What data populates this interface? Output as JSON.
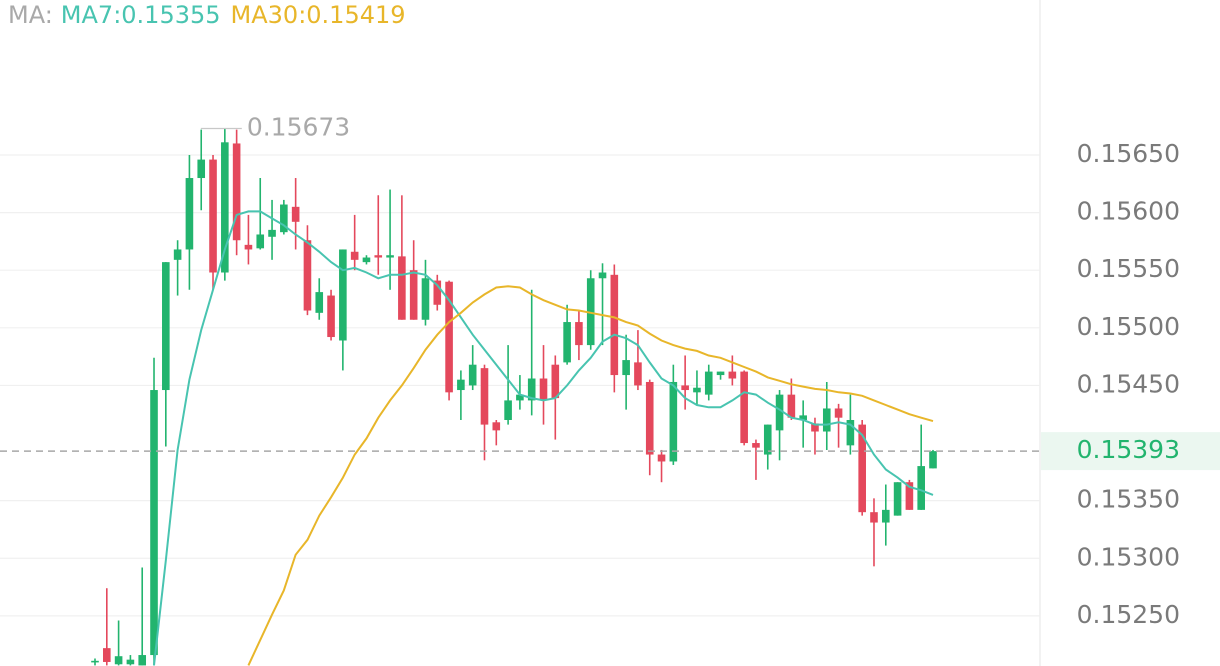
{
  "chart_data": {
    "type": "candlestick",
    "legend_prefix": "MA:",
    "open": [
      0.1521,
      0.15222,
      0.15208,
      0.15208,
      0.15207,
      0.15216,
      0.15446,
      0.15559,
      0.15568,
      0.1563,
      0.15646,
      0.15548,
      0.1566,
      0.15572,
      0.15569,
      0.15579,
      0.15583,
      0.15605,
      0.15576,
      0.15513,
      0.15528,
      0.15489,
      0.15566,
      0.15557,
      0.15563,
      0.15561,
      0.15562,
      0.1555,
      0.15507,
      0.15541,
      0.1554,
      0.15446,
      0.1545,
      0.15465,
      0.15418,
      0.1542,
      0.15437,
      0.15437,
      0.15456,
      0.15468,
      0.1547,
      0.15505,
      0.15485,
      0.15543,
      0.15546,
      0.15459,
      0.1547,
      0.15453,
      0.1539,
      0.15384,
      0.1545,
      0.15444,
      0.15442,
      0.15459,
      0.15462,
      0.15462,
      0.154,
      0.1539,
      0.15411,
      0.15442,
      0.1542,
      0.15417,
      0.1541,
      0.1543,
      0.15398,
      0.15416,
      0.1534,
      0.15331,
      0.15337,
      0.15366,
      0.15342,
      0.15378
    ],
    "high": [
      0.15213,
      0.15274,
      0.15246,
      0.15216,
      0.15292,
      0.15474,
      0.15557,
      0.15576,
      0.1565,
      0.15672,
      0.1565,
      0.15673,
      0.15672,
      0.15598,
      0.1563,
      0.15611,
      0.15611,
      0.1563,
      0.15589,
      0.15543,
      0.15533,
      0.15568,
      0.15598,
      0.15563,
      0.15615,
      0.1562,
      0.15615,
      0.15576,
      0.15559,
      0.15546,
      0.15541,
      0.15463,
      0.15485,
      0.15468,
      0.1542,
      0.15485,
      0.15459,
      0.15533,
      0.15485,
      0.15476,
      0.1552,
      0.15515,
      0.1555,
      0.15556,
      0.15555,
      0.15494,
      0.15498,
      0.15455,
      0.15394,
      0.15468,
      0.15476,
      0.15463,
      0.15468,
      0.15462,
      0.15476,
      0.15463,
      0.15403,
      0.15416,
      0.15446,
      0.15456,
      0.15437,
      0.15422,
      0.15453,
      0.15434,
      0.15442,
      0.1542,
      0.15352,
      0.15364,
      0.15366,
      0.15368,
      0.15416,
      0.15394
    ],
    "low": [
      0.15207,
      0.15207,
      0.15207,
      0.15207,
      0.15207,
      0.15207,
      0.15397,
      0.15528,
      0.15533,
      0.15602,
      0.15533,
      0.15541,
      0.15563,
      0.15555,
      0.15568,
      0.15559,
      0.15581,
      0.15568,
      0.15511,
      0.15507,
      0.15489,
      0.15463,
      0.1555,
      0.15555,
      0.15546,
      0.15533,
      0.15507,
      0.15507,
      0.15502,
      0.15515,
      0.15437,
      0.1542,
      0.15446,
      0.15385,
      0.15398,
      0.15416,
      0.15429,
      0.15424,
      0.15416,
      0.15403,
      0.15468,
      0.15472,
      0.15481,
      0.15485,
      0.15444,
      0.15429,
      0.15446,
      0.15372,
      0.15366,
      0.15381,
      0.15429,
      0.15433,
      0.15437,
      0.15455,
      0.1545,
      0.15398,
      0.15368,
      0.15377,
      0.15385,
      0.1542,
      0.15396,
      0.1539,
      0.15394,
      0.15396,
      0.1539,
      0.15337,
      0.15293,
      0.15311,
      0.15337,
      0.15342,
      0.15342,
      0.15378
    ],
    "close": [
      0.15211,
      0.1521,
      0.15215,
      0.15212,
      0.15216,
      0.15446,
      0.15557,
      0.15568,
      0.1563,
      0.15646,
      0.15548,
      0.15661,
      0.15576,
      0.15568,
      0.15581,
      0.15585,
      0.15607,
      0.15592,
      0.15515,
      0.15531,
      0.15492,
      0.15568,
      0.15559,
      0.15561,
      0.15561,
      0.15563,
      0.15507,
      0.15507,
      0.15543,
      0.1552,
      0.15444,
      0.15455,
      0.15468,
      0.15416,
      0.15411,
      0.15437,
      0.15442,
      0.15456,
      0.15437,
      0.15439,
      0.15505,
      0.15485,
      0.15543,
      0.15548,
      0.15459,
      0.15472,
      0.1545,
      0.1539,
      0.15384,
      0.15453,
      0.15446,
      0.15448,
      0.15462,
      0.15462,
      0.15456,
      0.154,
      0.15396,
      0.15416,
      0.15442,
      0.15422,
      0.15424,
      0.1541,
      0.1543,
      0.15422,
      0.1542,
      0.1534,
      0.15331,
      0.15342,
      0.15366,
      0.15342,
      0.1538,
      0.15393
    ],
    "up_color": "#22b46e",
    "down_color": "#e4485c",
    "series": [
      {
        "name": "MA7:0.15355",
        "color": "#48c4b0",
        "values": [
          null,
          null,
          null,
          null,
          null,
          0.15207,
          0.15298,
          0.15394,
          0.15455,
          0.15498,
          0.15533,
          0.15568,
          0.15598,
          0.15601,
          0.15601,
          0.15595,
          0.15589,
          0.15581,
          0.15574,
          0.15566,
          0.15557,
          0.1555,
          0.15552,
          0.15548,
          0.15543,
          0.15546,
          0.15546,
          0.15548,
          0.15546,
          0.15537,
          0.15524,
          0.15509,
          0.15494,
          0.15481,
          0.15468,
          0.15455,
          0.15442,
          0.15439,
          0.15437,
          0.15439,
          0.1545,
          0.15463,
          0.15474,
          0.15488,
          0.15494,
          0.15491,
          0.15485,
          0.1547,
          0.15456,
          0.1545,
          0.15439,
          0.15433,
          0.15431,
          0.15431,
          0.15437,
          0.15444,
          0.15442,
          0.15435,
          0.15429,
          0.15422,
          0.1542,
          0.15416,
          0.15416,
          0.15418,
          0.15416,
          0.15407,
          0.1539,
          0.15377,
          0.1537,
          0.15362,
          0.15359,
          0.15355
        ]
      },
      {
        "name": "MA30:0.15419",
        "color": "#e8b62a",
        "values": [
          null,
          null,
          null,
          null,
          null,
          null,
          null,
          null,
          null,
          null,
          null,
          null,
          null,
          0.15207,
          0.15229,
          0.15251,
          0.15272,
          0.15303,
          0.15316,
          0.15337,
          0.15353,
          0.1537,
          0.1539,
          0.15404,
          0.15422,
          0.15437,
          0.1545,
          0.15465,
          0.15481,
          0.15494,
          0.15505,
          0.15513,
          0.15522,
          0.15529,
          0.15535,
          0.15536,
          0.15535,
          0.15529,
          0.15524,
          0.1552,
          0.15516,
          0.15515,
          0.15513,
          0.15511,
          0.15509,
          0.15505,
          0.15502,
          0.15495,
          0.15489,
          0.15485,
          0.15482,
          0.1548,
          0.15476,
          0.15474,
          0.1547,
          0.15466,
          0.15462,
          0.15457,
          0.15454,
          0.15451,
          0.15449,
          0.15447,
          0.15446,
          0.15444,
          0.15443,
          0.15441,
          0.15437,
          0.15433,
          0.15429,
          0.15425,
          0.15422,
          0.15419
        ]
      }
    ],
    "ylim": [
      0.152065,
      0.157845
    ],
    "yticks": [
      {
        "value": 0.1525,
        "label": "0.15250"
      },
      {
        "value": 0.153,
        "label": "0.15300"
      },
      {
        "value": 0.1535,
        "label": "0.15350"
      },
      {
        "value": 0.1545,
        "label": "0.15450"
      },
      {
        "value": 0.155,
        "label": "0.15500"
      },
      {
        "value": 0.1555,
        "label": "0.15550"
      },
      {
        "value": 0.156,
        "label": "0.15600"
      },
      {
        "value": 0.1565,
        "label": "0.15650"
      }
    ],
    "grid": true,
    "last_price": 0.15393,
    "max_price": 0.15673
  }
}
